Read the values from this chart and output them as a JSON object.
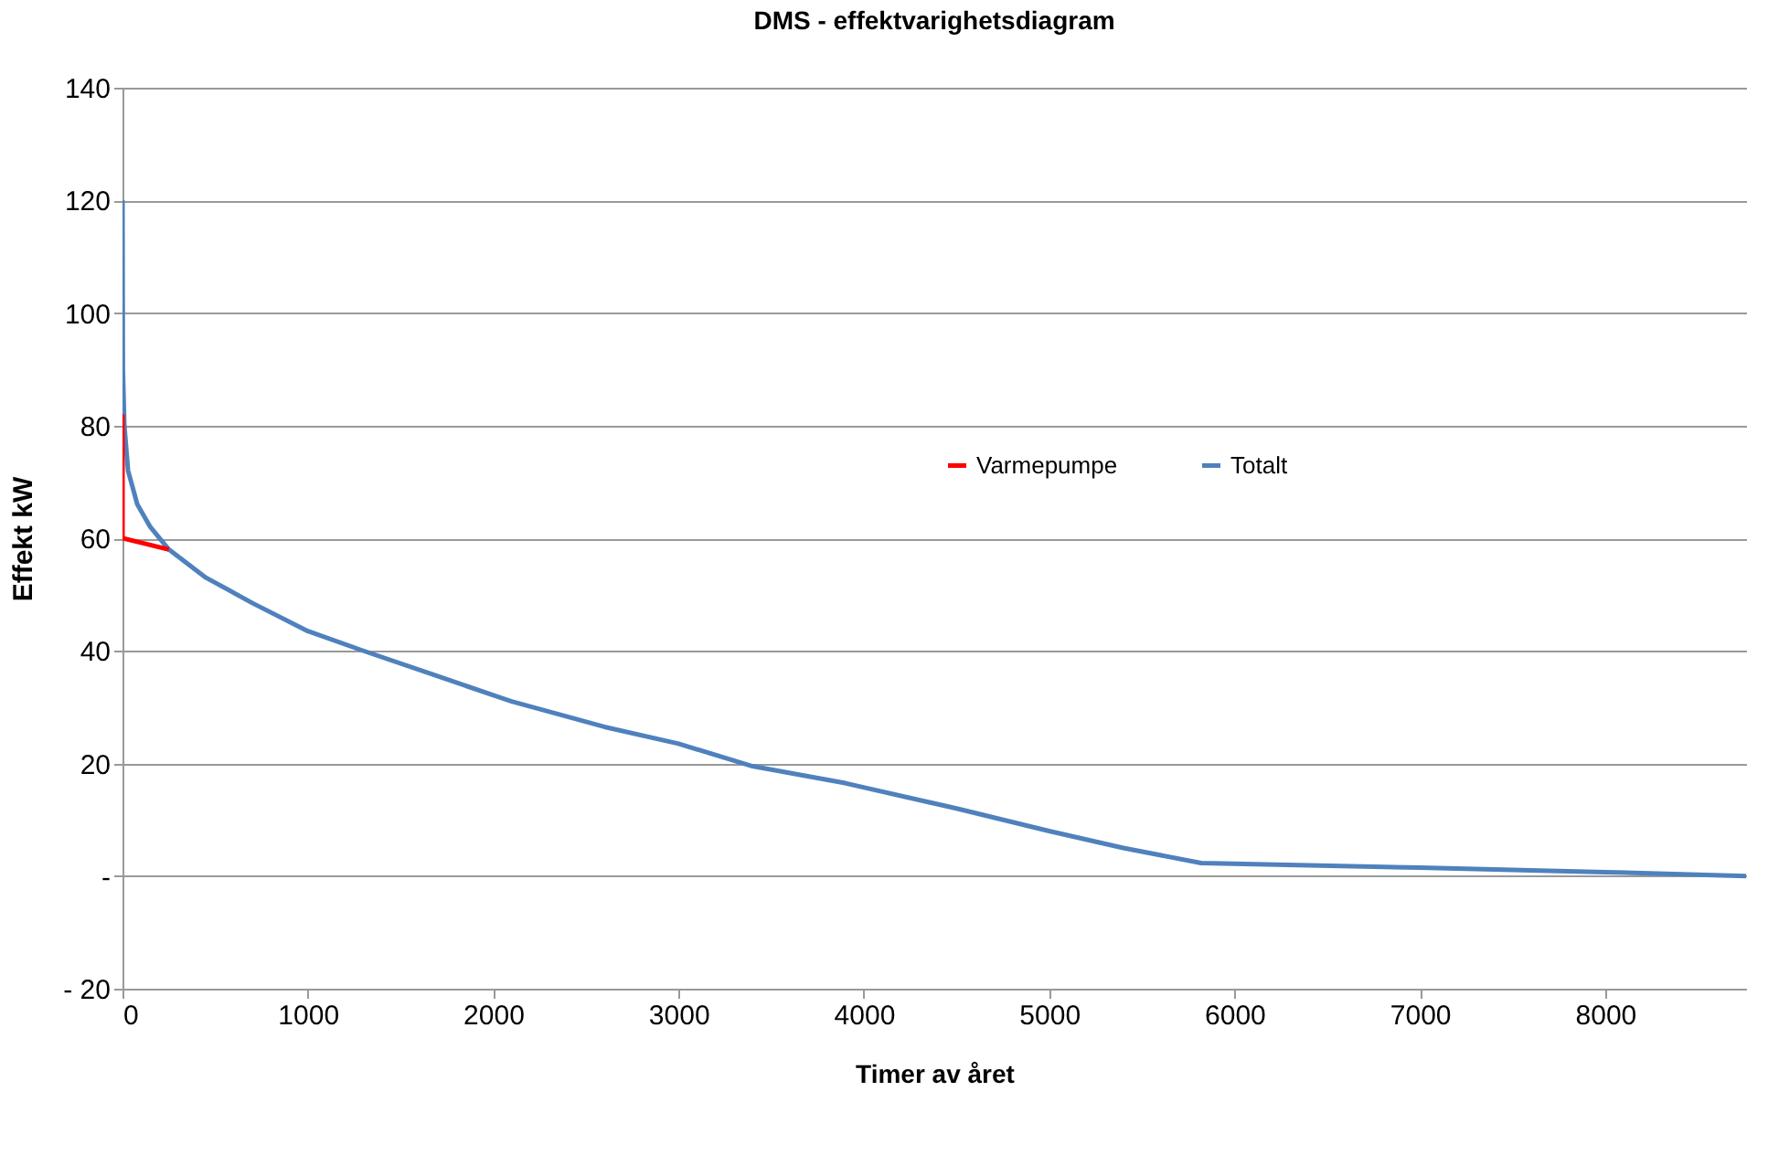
{
  "chart_data": {
    "type": "line",
    "title": "DMS - effektvarighetsdiagram",
    "xlabel": "Timer av året",
    "ylabel": "Effekt kW",
    "xlim": [
      0,
      8760
    ],
    "xticks": [
      0,
      1000,
      2000,
      3000,
      4000,
      5000,
      6000,
      7000,
      8000
    ],
    "ylim": [
      -20,
      140
    ],
    "yticks": [
      {
        "value": -20,
        "label": "- 20"
      },
      {
        "value": 0,
        "label": "-"
      },
      20,
      40,
      60,
      80,
      100,
      120,
      140
    ],
    "grid": "y",
    "legend": "right",
    "line_style": "solid",
    "marker": "none",
    "series": [
      {
        "name": "Varmepumpe",
        "color": "#ff0000",
        "x": [
          0,
          0,
          250
        ],
        "values": [
          82,
          60,
          58
        ]
      },
      {
        "name": "Totalt",
        "color": "#4f81bd",
        "x": [
          0,
          2,
          10,
          30,
          80,
          150,
          250,
          450,
          700,
          1000,
          1300,
          1700,
          2100,
          2600,
          3000,
          3400,
          3900,
          4500,
          5000,
          5400,
          5820,
          7000,
          8000,
          8760
        ],
        "values": [
          120,
          90,
          80,
          72,
          66,
          62,
          58,
          53,
          48.5,
          43.5,
          40,
          35.5,
          31,
          26.5,
          23.5,
          19.5,
          16.5,
          12,
          8,
          5,
          2.3,
          1.5,
          0.7,
          0
        ]
      }
    ]
  }
}
